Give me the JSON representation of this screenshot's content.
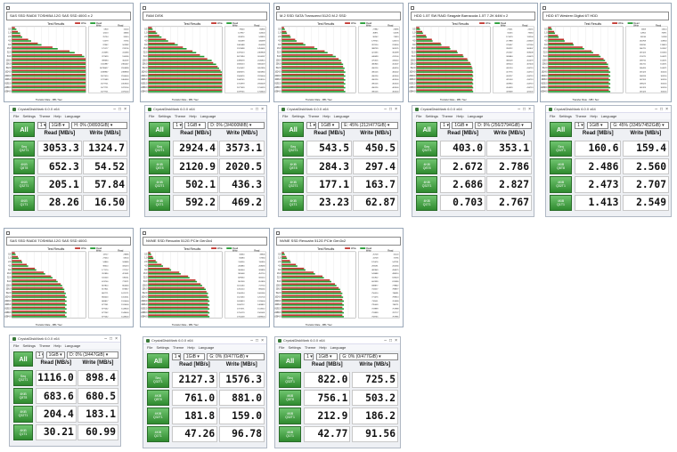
{
  "atto": [
    {
      "title": "SAS SSD RAID0  TOSHIBA 12G SAS SSD 400G x 2",
      "read": [
        6,
        11,
        14,
        26,
        40,
        62,
        85,
        98,
        100,
        100,
        100,
        100,
        100,
        100,
        100,
        100,
        100
      ],
      "write": [
        4,
        8,
        12,
        22,
        35,
        55,
        78,
        95,
        100,
        100,
        100,
        100,
        100,
        100,
        100,
        100,
        100
      ],
      "wcol": [
        "6918",
        "12213",
        "25734",
        "51579",
        "97342",
        "175177",
        "213495",
        "227629",
        "399694",
        "1341987",
        "16798627",
        "2598967",
        "2627010",
        "1722089",
        "1677721",
        "1677721",
        "1677721"
      ],
      "rcol": [
        "15000",
        "18480",
        "32410",
        "72765",
        "102382",
        "276705",
        "412480",
        "516180",
        "364197",
        "2360447",
        "2559999",
        "2398958",
        "2534400",
        "2464563",
        "2453300",
        "2475200",
        "2475200"
      ]
    },
    {
      "title": "RAM DISK",
      "read": [
        6,
        12,
        18,
        27,
        40,
        52,
        65,
        76,
        86,
        92,
        96,
        100,
        100,
        100,
        100,
        100,
        100
      ],
      "write": [
        5,
        10,
        15,
        24,
        36,
        47,
        60,
        70,
        80,
        88,
        94,
        98,
        100,
        100,
        100,
        100,
        100
      ],
      "wcol": [
        "79300",
        "147917",
        "263376",
        "556599",
        "1065488",
        "1523498",
        "2076513",
        "3671394",
        "2098478",
        "2636513",
        "2541422",
        "2669075",
        "1944076",
        "2048745",
        "1716979",
        "2077459",
        "2078745"
      ],
      "rcol": [
        "86990",
        "114600",
        "143920",
        "346399",
        "656599",
        "1454601",
        "2369908",
        "3014597",
        "2536913",
        "3060419",
        "3052990",
        "3006960",
        "2976004",
        "2919114",
        "2934409",
        "1214519",
        "1744600"
      ]
    },
    {
      "title": "M.2 SSD SATA  Transcend 512G M.2 SSD",
      "read": [
        4,
        7,
        12,
        20,
        32,
        48,
        62,
        73,
        80,
        83,
        85,
        86,
        86,
        86,
        86,
        86,
        86
      ],
      "write": [
        3,
        6,
        11,
        18,
        29,
        44,
        58,
        69,
        77,
        81,
        83,
        84,
        84,
        84,
        84,
        84,
        84
      ],
      "wcol": [
        "27982",
        "46871",
        "96242",
        "178745",
        "287150",
        "388739",
        "421565",
        "446099",
        "475316",
        "480946",
        "490126",
        "490126",
        "490126",
        "490126",
        "490126",
        "490126",
        "490126"
      ],
      "rcol": [
        "26896",
        "54196",
        "71819",
        "143174",
        "224300",
        "303125",
        "362399",
        "412100",
        "436240",
        "452007",
        "464550",
        "460002",
        "462000",
        "462000",
        "462000",
        "462000",
        "462000"
      ]
    },
    {
      "title": "HDD 1.5T SW RAID  Seagate Barracuda 1.5T 7.2K 64M x 2",
      "read": [
        5,
        9,
        14,
        22,
        34,
        46,
        56,
        64,
        70,
        74,
        76,
        77,
        77,
        77,
        77,
        77,
        77
      ],
      "write": [
        4,
        8,
        13,
        21,
        33,
        45,
        55,
        63,
        69,
        73,
        75,
        76,
        76,
        76,
        76,
        76,
        76
      ],
      "wcol": [
        "27451",
        "55055",
        "121479",
        "217988",
        "276037",
        "359222",
        "253167",
        "309684",
        "368109",
        "409124",
        "420124",
        "417776",
        "424127",
        "425103",
        "418930",
        "414429",
        "419438"
      ],
      "rcol": [
        "24255",
        "73564",
        "113204",
        "243349",
        "247184",
        "300807",
        "359008",
        "414479",
        "452479",
        "407404",
        "414713",
        "414713",
        "414713",
        "414713",
        "414713",
        "414713",
        "422200"
      ]
    },
    {
      "title": "HDD 6T  Western Digital 6T HDD",
      "read": [
        5,
        9,
        14,
        22,
        34,
        48,
        60,
        70,
        76,
        80,
        82,
        83,
        83,
        83,
        83,
        83,
        83
      ],
      "write": [
        4,
        8,
        13,
        21,
        33,
        46,
        58,
        68,
        74,
        78,
        80,
        81,
        81,
        81,
        81,
        81,
        81
      ],
      "wcol": [
        "6809",
        "12852",
        "96134",
        "160768",
        "158230",
        "164725",
        "167424",
        "170275",
        "169716",
        "164741",
        "166426",
        "167423",
        "166919",
        "167263",
        "168523",
        "167423",
        "167423"
      ],
      "rcol": [
        "13514",
        "70971",
        "55269",
        "113900",
        "139613",
        "162457",
        "165316",
        "164571",
        "164571",
        "164571",
        "164571",
        "165116",
        "165116",
        "165116",
        "165116",
        "165116",
        "165116"
      ]
    },
    {
      "title": "SAS SSD RAID0  TOSHIBA 12G SAS SSD 400G",
      "read": [
        5,
        9,
        14,
        22,
        33,
        45,
        55,
        62,
        68,
        71,
        73,
        74,
        74,
        74,
        74,
        74,
        74
      ],
      "write": [
        4,
        8,
        13,
        20,
        31,
        43,
        53,
        60,
        66,
        69,
        71,
        72,
        72,
        72,
        72,
        72,
        72
      ],
      "wcol": [
        "13717",
        "27054",
        "54800",
        "98310",
        "177170",
        "312890",
        "531500",
        "674700",
        "807810",
        "817921",
        "862771",
        "884400",
        "869817",
        "877261",
        "877262",
        "877262",
        "877262"
      ],
      "rcol": [
        "29896",
        "58150",
        "108680",
        "185470",
        "277117",
        "421431",
        "590511",
        "773271",
        "804460",
        "873817",
        "1075771",
        "1056511",
        "1126400",
        "1126400",
        "1148000",
        "1148000",
        "1148000"
      ]
    },
    {
      "title": "NVME SSD  Revuahn 512G  PCIe Gen3x4",
      "read": [
        4,
        7,
        12,
        20,
        31,
        44,
        56,
        66,
        73,
        78,
        81,
        82,
        83,
        83,
        83,
        83,
        83
      ],
      "write": [
        3,
        6,
        10,
        18,
        29,
        42,
        54,
        64,
        71,
        76,
        79,
        80,
        81,
        81,
        81,
        81,
        81
      ],
      "wcol": [
        "35850",
        "66694",
        "110916",
        "206890",
        "364004",
        "585608",
        "829030",
        "961209",
        "1155260",
        "1250210",
        "1500354",
        "1521030",
        "1633813",
        "1634712",
        "1707071",
        "1716179",
        "1750458"
      ],
      "rcol": [
        "39906",
        "67364",
        "110916",
        "208090",
        "326890",
        "452710",
        "582210",
        "651830",
        "717750",
        "896260",
        "1065560",
        "1255700",
        "1376000",
        "1469812",
        "1513512",
        "1565001",
        "1689300"
      ]
    },
    {
      "title": "NVME SSD  Revuahn 512G  PCIe Gen3x2",
      "read": [
        4,
        7,
        12,
        21,
        32,
        45,
        57,
        67,
        74,
        79,
        82,
        83,
        84,
        84,
        84,
        84,
        84
      ],
      "write": [
        3,
        6,
        11,
        19,
        30,
        43,
        55,
        65,
        72,
        77,
        80,
        81,
        82,
        82,
        82,
        82,
        82
      ],
      "wcol": [
        "25728",
        "41728",
        "125476",
        "293191",
        "482949",
        "543688",
        "555902",
        "602399",
        "698877",
        "734557",
        "756510",
        "771476",
        "732011",
        "735009",
        "719999",
        "719999",
        "758765"
      ],
      "rcol": [
        "32120",
        "72785",
        "142761",
        "263180",
        "458375",
        "498510",
        "633023",
        "670980",
        "778847",
        "798877",
        "784811",
        "799913",
        "761899",
        "784711",
        "757989",
        "787777",
        "767985"
      ]
    }
  ],
  "atto_common": {
    "desc_label": "Description",
    "test_results": "Test Results",
    "legend_write": "Write",
    "legend_read": "Read",
    "col_write": "Write",
    "col_read": "Read",
    "xlabel": "Transfer Rate - MB / Sec",
    "sizes": [
      "0.5",
      "1.0",
      "2.0",
      "4.0",
      "8.0",
      "16.0",
      "32.0",
      "64.0",
      "128.0",
      "256.0",
      "512.0",
      "1024.0",
      "2048.0",
      "4096.0",
      "8192.0",
      "12288.0",
      "16384.0"
    ]
  },
  "cdm": [
    {
      "title": "CrystalDiskMark 6.0.0 x64",
      "count": "1",
      "size": "1GiB",
      "drive": "H: 0% (0/893GiB)",
      "values": [
        [
          "3053.3",
          "1324.7"
        ],
        [
          "652.3",
          "54.52"
        ],
        [
          "205.1",
          "57.84"
        ],
        [
          "28.26",
          "16.50"
        ]
      ]
    },
    {
      "title": "CrystalDiskMark 6.0.0 x64",
      "count": "1",
      "size": "1GiB",
      "drive": "D: 0% (3/4000MiB)",
      "values": [
        [
          "2924.4",
          "3573.1"
        ],
        [
          "2120.9",
          "2020.5"
        ],
        [
          "502.1",
          "436.3"
        ],
        [
          "592.2",
          "469.2"
        ]
      ]
    },
    {
      "title": "CrystalDiskMark 6.0.0 x64",
      "count": "1",
      "size": "1GiB",
      "drive": "E: 45% (212/477GiB)",
      "values": [
        [
          "543.5",
          "450.5"
        ],
        [
          "284.3",
          "297.4"
        ],
        [
          "177.1",
          "163.7"
        ],
        [
          "23.23",
          "62.87"
        ]
      ]
    },
    {
      "title": "CrystalDiskMark 6.0.0 x64",
      "count": "1",
      "size": "1GiB",
      "drive": "D: 9% (256/2794GiB)",
      "values": [
        [
          "403.0",
          "353.1"
        ],
        [
          "2.672",
          "2.786"
        ],
        [
          "2.686",
          "2.827"
        ],
        [
          "0.703",
          "2.767"
        ]
      ]
    },
    {
      "title": "CrystalDiskMark 6.0.0 x64",
      "count": "1",
      "size": "1GiB",
      "drive": "G: 45% (3345/7452GiB)",
      "values": [
        [
          "160.6",
          "159.4"
        ],
        [
          "2.486",
          "2.560"
        ],
        [
          "2.473",
          "2.707"
        ],
        [
          "1.413",
          "2.549"
        ]
      ]
    },
    {
      "title": "CrystalDiskMark 6.0.0 x64",
      "count": "1",
      "size": "1GiB",
      "drive": "D: 0% (3/447GiB)",
      "values": [
        [
          "1116.0",
          "898.4"
        ],
        [
          "683.6",
          "680.5"
        ],
        [
          "204.4",
          "183.1"
        ],
        [
          "30.21",
          "60.99"
        ]
      ]
    },
    {
      "title": "CrystalDiskMark 6.0.0 x64",
      "count": "1",
      "size": "1GiB",
      "drive": "G: 0% (0/477GiB)",
      "values": [
        [
          "2127.3",
          "1576.3"
        ],
        [
          "761.0",
          "881.0"
        ],
        [
          "181.8",
          "159.0"
        ],
        [
          "47.26",
          "96.78"
        ]
      ]
    },
    {
      "title": "CrystalDiskMark 6.0.0 x64",
      "count": "1",
      "size": "1GiB",
      "drive": "G: 0% (0/477GiB)",
      "values": [
        [
          "822.0",
          "725.5"
        ],
        [
          "756.1",
          "503.2"
        ],
        [
          "212.9",
          "186.2"
        ],
        [
          "42.77",
          "91.56"
        ]
      ]
    }
  ],
  "cdm_common": {
    "menu": [
      "File",
      "Settings",
      "Theme",
      "Help",
      "Language"
    ],
    "all": "All",
    "read_hdr": "Read [MB/s]",
    "write_hdr": "Write [MB/s]",
    "rows": [
      [
        "Seq",
        "Q32T1"
      ],
      [
        "4KiB",
        "Q8T8"
      ],
      [
        "4KiB",
        "Q32T1"
      ],
      [
        "4KiB",
        "Q1T1"
      ]
    ]
  },
  "colors": {
    "write": "#c0302a",
    "read": "#1e9a2e",
    "cdm_green": "#2f8a2f"
  }
}
